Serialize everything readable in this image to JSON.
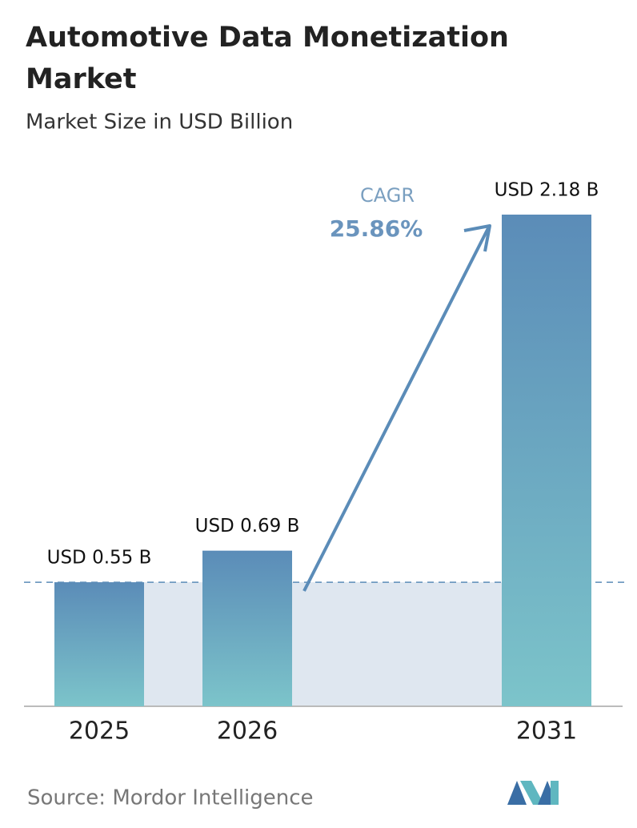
{
  "chart_data": {
    "type": "bar",
    "title": "Automotive Data Monetization Market",
    "subtitle": "Market Size in USD Billion",
    "categories": [
      "2025",
      "2026",
      "2031"
    ],
    "values": [
      0.55,
      0.69,
      2.18
    ],
    "value_labels": [
      "USD 0.55 B",
      "USD 0.69 B",
      "USD 2.18 B"
    ],
    "annotation": {
      "label": "CAGR",
      "value": "25.86%"
    },
    "source": "Source: Mordor Intelligence"
  }
}
